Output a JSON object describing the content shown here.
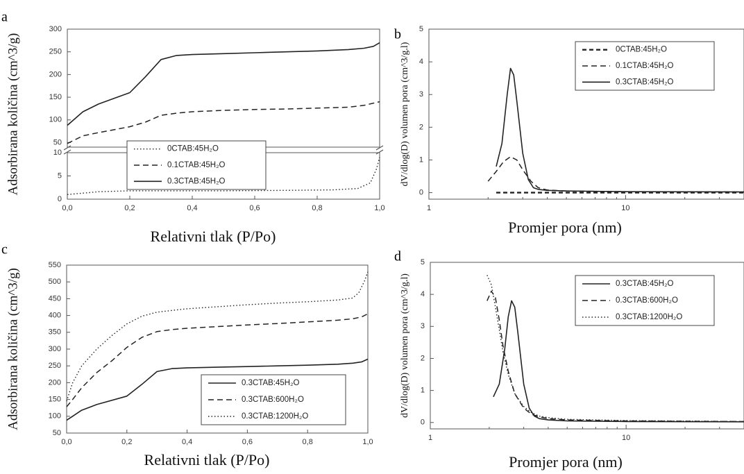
{
  "chart_data": [
    {
      "panel_letter": "a",
      "type": "line",
      "xlabel": "Relativni tlak (P/Po)",
      "ylabel": "Adsorbirana količina (cm^3/g)",
      "xlim": [
        0.0,
        1.0
      ],
      "x_ticks": [
        "0,0",
        "0,2",
        "0,4",
        "0,6",
        "0,8",
        "1,0"
      ],
      "broken_y_axis": true,
      "upper_ylim": [
        40,
        300
      ],
      "upper_y_ticks": [
        50,
        100,
        150,
        200,
        250,
        300
      ],
      "lower_ylim": [
        0,
        10
      ],
      "lower_y_ticks": [
        0,
        5,
        10
      ],
      "legend": {
        "placement": "lower-center",
        "entries": [
          "0CTAB:45H₂O",
          "0.1CTAB:45H₂O",
          "0.3CTAB:45H₂O"
        ]
      },
      "series": [
        {
          "name": "0CTAB:45H₂O",
          "style": "dotted",
          "axis_part": "lower",
          "x": [
            0.0,
            0.05,
            0.1,
            0.2,
            0.3,
            0.5,
            0.7,
            0.85,
            0.93,
            0.97,
            0.99,
            1.0
          ],
          "y": [
            1.0,
            1.3,
            1.6,
            1.8,
            1.8,
            1.8,
            1.9,
            2.0,
            2.3,
            3.5,
            6.5,
            9.0
          ]
        },
        {
          "name": "0.1CTAB:45H₂O",
          "style": "dashed",
          "axis_part": "upper",
          "x": [
            0.0,
            0.05,
            0.1,
            0.2,
            0.25,
            0.3,
            0.35,
            0.4,
            0.5,
            0.6,
            0.7,
            0.8,
            0.9,
            0.95,
            1.0
          ],
          "y": [
            48,
            65,
            72,
            85,
            95,
            110,
            115,
            118,
            121,
            123,
            124,
            126,
            128,
            132,
            140
          ]
        },
        {
          "name": "0.3CTAB:45H₂O",
          "style": "solid",
          "axis_part": "upper",
          "x": [
            0.0,
            0.05,
            0.1,
            0.2,
            0.25,
            0.3,
            0.35,
            0.4,
            0.5,
            0.6,
            0.7,
            0.8,
            0.9,
            0.95,
            0.98,
            1.0
          ],
          "y": [
            88,
            118,
            135,
            160,
            195,
            233,
            242,
            244,
            246,
            248,
            250,
            252,
            255,
            258,
            262,
            270
          ]
        }
      ]
    },
    {
      "panel_letter": "b",
      "type": "line",
      "xlabel": "Promjer pora (nm)",
      "ylabel": "dV/dlog(D) volumen pora (cm^3/g.l)",
      "x_scale": "log",
      "xlim": [
        1,
        40
      ],
      "x_ticks": [
        1,
        10
      ],
      "ylim": [
        -0.2,
        5
      ],
      "y_ticks": [
        0,
        1,
        2,
        3,
        4,
        5
      ],
      "legend": {
        "placement": "top-right",
        "entries": [
          "0CTAB:45H₂O",
          "0.1CTAB:45H₂O",
          "0.3CTAB:45H₂O"
        ]
      },
      "series": [
        {
          "name": "0CTAB:45H₂O",
          "style": "dashed-bold",
          "x": [
            2.2,
            3.0,
            5.0,
            10.0,
            20.0,
            40.0
          ],
          "y": [
            0.0,
            0.0,
            0.0,
            0.0,
            0.0,
            0.0
          ]
        },
        {
          "name": "0.1CTAB:45H₂O",
          "style": "dashed",
          "x": [
            2.0,
            2.2,
            2.4,
            2.6,
            2.8,
            3.0,
            3.3,
            3.6,
            4.0,
            5.0,
            10.0,
            40.0
          ],
          "y": [
            0.35,
            0.65,
            0.95,
            1.1,
            1.0,
            0.7,
            0.35,
            0.15,
            0.08,
            0.05,
            0.03,
            0.02
          ]
        },
        {
          "name": "0.3CTAB:45H₂O",
          "style": "solid",
          "x": [
            2.2,
            2.35,
            2.5,
            2.6,
            2.7,
            2.8,
            3.0,
            3.2,
            3.4,
            3.6,
            4.0,
            5.0,
            10.0,
            40.0
          ],
          "y": [
            0.8,
            1.5,
            3.0,
            3.8,
            3.6,
            2.8,
            1.2,
            0.4,
            0.15,
            0.1,
            0.07,
            0.05,
            0.03,
            0.02
          ]
        }
      ]
    },
    {
      "panel_letter": "c",
      "type": "line",
      "xlabel": "Relativni tlak (P/Po)",
      "ylabel": "Adsorbirana količina (cm^3/g)",
      "xlim": [
        0.0,
        1.0
      ],
      "x_ticks": [
        "0,0",
        "0,2",
        "0,4",
        "0,6",
        "0,8",
        "1,0"
      ],
      "ylim": [
        50,
        550
      ],
      "y_ticks": [
        50,
        100,
        150,
        200,
        250,
        300,
        350,
        400,
        450,
        500,
        550
      ],
      "legend": {
        "placement": "lower-right",
        "entries": [
          "0.3CTAB:45H₂O",
          "0.3CTAB:600H₂O",
          "0.3CTAB:1200H₂O"
        ]
      },
      "series": [
        {
          "name": "0.3CTAB:45H₂O",
          "style": "solid",
          "x": [
            0.0,
            0.05,
            0.1,
            0.2,
            0.25,
            0.3,
            0.35,
            0.4,
            0.5,
            0.6,
            0.7,
            0.8,
            0.9,
            0.95,
            0.98,
            1.0
          ],
          "y": [
            88,
            118,
            135,
            160,
            195,
            233,
            242,
            244,
            246,
            248,
            250,
            252,
            255,
            258,
            262,
            270
          ]
        },
        {
          "name": "0.3CTAB:600H₂O",
          "style": "dashed",
          "x": [
            0.0,
            0.02,
            0.05,
            0.1,
            0.15,
            0.2,
            0.25,
            0.3,
            0.35,
            0.4,
            0.5,
            0.6,
            0.7,
            0.8,
            0.9,
            0.95,
            0.98,
            1.0
          ],
          "y": [
            128,
            150,
            185,
            230,
            265,
            305,
            335,
            352,
            358,
            362,
            367,
            372,
            376,
            381,
            386,
            390,
            396,
            405
          ]
        },
        {
          "name": "0.3CTAB:1200H₂O",
          "style": "dotted",
          "x": [
            0.0,
            0.02,
            0.05,
            0.1,
            0.15,
            0.2,
            0.25,
            0.3,
            0.35,
            0.4,
            0.5,
            0.6,
            0.7,
            0.8,
            0.9,
            0.95,
            0.97,
            0.99,
            1.0
          ],
          "y": [
            145,
            200,
            250,
            300,
            340,
            375,
            398,
            410,
            415,
            420,
            426,
            432,
            437,
            441,
            446,
            452,
            468,
            505,
            530
          ]
        }
      ]
    },
    {
      "panel_letter": "d",
      "type": "line",
      "xlabel": "Promjer pora (nm)",
      "ylabel": "dV/dlog(D) volumen pora (cm^3/g.l)",
      "x_scale": "log",
      "xlim": [
        1,
        40
      ],
      "x_ticks": [
        1,
        10
      ],
      "ylim": [
        -0.2,
        5
      ],
      "y_ticks": [
        0,
        1,
        2,
        3,
        4,
        5
      ],
      "legend": {
        "placement": "top-right",
        "entries": [
          "0.3CTAB:45H₂O",
          "0.3CTAB:600H₂O",
          "0.3CTAB:1200H₂O"
        ]
      },
      "series": [
        {
          "name": "0.3CTAB:45H₂O",
          "style": "solid",
          "x": [
            2.1,
            2.25,
            2.4,
            2.5,
            2.6,
            2.7,
            2.8,
            3.0,
            3.2,
            3.4,
            3.6,
            4.0,
            5.0,
            10.0,
            40.0
          ],
          "y": [
            0.8,
            1.2,
            2.3,
            3.3,
            3.8,
            3.6,
            2.8,
            1.2,
            0.45,
            0.2,
            0.12,
            0.08,
            0.05,
            0.03,
            0.02
          ]
        },
        {
          "name": "0.3CTAB:600H₂O",
          "style": "dashed",
          "x": [
            1.95,
            2.05,
            2.15,
            2.25,
            2.35,
            2.5,
            2.7,
            3.0,
            3.3,
            3.6,
            4.0,
            5.0,
            10.0,
            40.0
          ],
          "y": [
            3.8,
            4.1,
            3.9,
            3.2,
            2.4,
            1.6,
            0.9,
            0.45,
            0.25,
            0.18,
            0.12,
            0.08,
            0.05,
            0.03
          ]
        },
        {
          "name": "0.3CTAB:1200H₂O",
          "style": "dotted",
          "x": [
            1.95,
            2.05,
            2.15,
            2.25,
            2.35,
            2.5,
            2.7,
            3.0,
            3.3,
            3.6,
            4.0,
            5.0,
            10.0,
            40.0
          ],
          "y": [
            4.6,
            4.3,
            3.6,
            2.9,
            2.2,
            1.5,
            0.9,
            0.5,
            0.3,
            0.2,
            0.15,
            0.1,
            0.06,
            0.03
          ]
        }
      ]
    }
  ]
}
